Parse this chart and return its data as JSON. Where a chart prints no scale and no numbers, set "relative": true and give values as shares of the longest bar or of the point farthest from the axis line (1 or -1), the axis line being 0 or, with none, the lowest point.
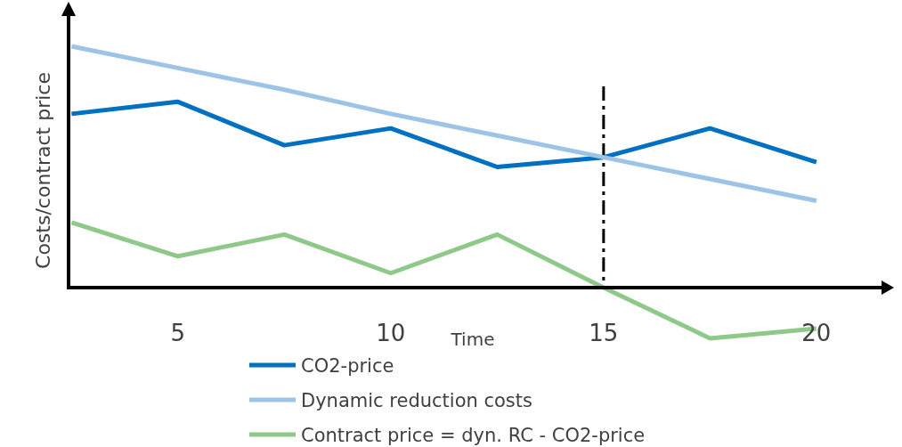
{
  "chart_data": {
    "type": "line",
    "relative": true,
    "xlabel": "Time",
    "ylabel": "Costs/contract price",
    "x": [
      2.5,
      5,
      7.5,
      10,
      12.5,
      15,
      17.5,
      20
    ],
    "xlim": [
      2.43,
      21.53
    ],
    "xticks": [
      5,
      10,
      15,
      20
    ],
    "series": [
      {
        "name": "CO2-price",
        "color": "#0070c0",
        "values": [
          0.72,
          0.77,
          0.59,
          0.66,
          0.5,
          0.54,
          0.66,
          0.52
        ]
      },
      {
        "name": "Dynamic reduction costs",
        "color": "#9dc3e6",
        "values": [
          1.0,
          0.91,
          0.82,
          0.72,
          0.63,
          0.54,
          0.45,
          0.36
        ]
      },
      {
        "name": "Contract price = dyn. RC - CO2-price",
        "color": "#8fc98a",
        "values": [
          0.27,
          0.13,
          0.22,
          0.06,
          0.22,
          0,
          -0.21,
          -0.17
        ]
      }
    ],
    "ref_lines": [
      {
        "axis": "x",
        "value": 15,
        "color": "#000000"
      }
    ],
    "legend": "bottom",
    "grid": false,
    "marker": "none",
    "line_style": "solid"
  }
}
